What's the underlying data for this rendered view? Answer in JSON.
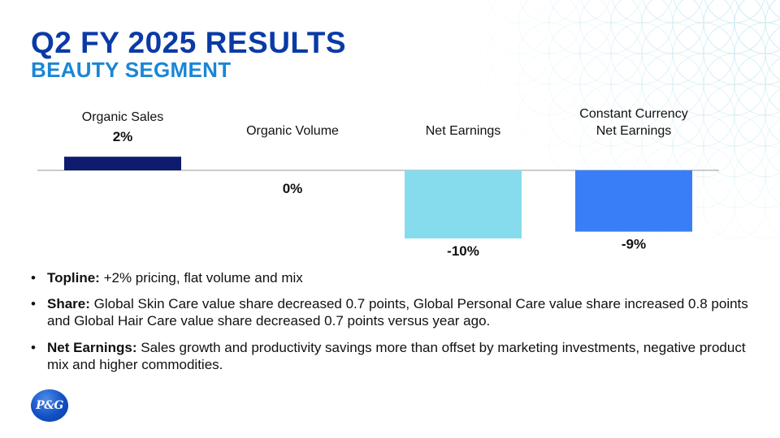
{
  "header": {
    "title": "Q2 FY 2025 RESULTS",
    "subtitle": "BEAUTY SEGMENT"
  },
  "colors": {
    "title": "#0a3aa6",
    "subtitle": "#1a86d6",
    "pattern": "#bfe6ef"
  },
  "chart_data": {
    "type": "bar",
    "categories": [
      [
        "Organic Sales"
      ],
      [
        "Organic Volume"
      ],
      [
        "Net Earnings"
      ],
      [
        "Constant Currency",
        "Net Earnings"
      ]
    ],
    "values": [
      2,
      0,
      -10,
      -9
    ],
    "value_labels": [
      "2%",
      "0%",
      "-10%",
      "-9%"
    ],
    "colors": [
      "#0f1b6e",
      "#0f1b6e",
      "#86dcec",
      "#3a7ef7"
    ],
    "ylim": [
      -10,
      2
    ],
    "grid": false
  },
  "bullets": [
    {
      "bold": "Topline:",
      "text": " +2% pricing, flat volume and mix"
    },
    {
      "bold": "Share:",
      "text": " Global Skin Care value share decreased 0.7 points, Global Personal Care value share increased 0.8 points and Global Hair Care value share decreased 0.7 points versus year ago."
    },
    {
      "bold": "Net Earnings:",
      "text": " Sales growth and productivity savings more than offset by marketing investments, negative product mix and higher commodities."
    }
  ],
  "logo": {
    "text": "P&G"
  }
}
